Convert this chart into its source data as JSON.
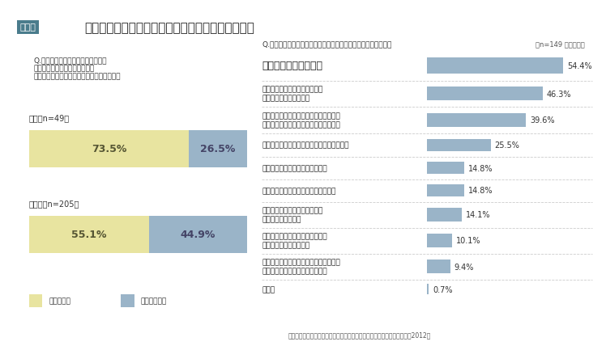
{
  "title": "経営人材候補の育成を目的とした異動・配置の実態",
  "title_badge": "図表２",
  "left_question": "Q.経営人材候補の育成を目的とした\n　異動・配置を行っていますか\n　（自社の経営人材育成に対する満足度別）",
  "right_question": "Q.経営人材候補の育成を目的とした異動・配置の課題は何ですか",
  "right_note": "（n=149 複数選択）",
  "satisfaction_groups": [
    {
      "label": "満足（n=49）",
      "bar1_pct": 73.5,
      "bar2_pct": 26.5,
      "bar1_label": "73.5%",
      "bar2_label": "26.5%"
    },
    {
      "label": "不満足（n=205）",
      "bar1_pct": 55.1,
      "bar2_pct": 44.9,
      "bar1_label": "55.1%",
      "bar2_label": "44.9%"
    }
  ],
  "legend": [
    "行っている",
    "行っていない"
  ],
  "color_yes": "#e8e4a0",
  "color_no": "#9ab4c8",
  "bar_categories": [
    "現場が人を手放さない",
    "異動・配置が計画的ではなく、\n場当たり的になっている",
    "相対的に年齢の高い人材のポストオフが\nでき、若手を配置するポストが作れない",
    "異動・配置のために必要なポストが足りない",
    "現場が異動・配置に否定的である",
    "異動・配置での学びを活かす場がない",
    "高いポジションへの抜擢人事に\n否定的な風土がある",
    "異動・配置先でパフォーマンスを\nあげられない人材が多い",
    "失敗させることを恐れ、実力以上の力が\n求められる職務への配置をしない",
    "その他"
  ],
  "bar_values": [
    54.4,
    46.3,
    39.6,
    25.5,
    14.8,
    14.8,
    14.1,
    10.1,
    9.4,
    0.7
  ],
  "bar_labels": [
    "54.4%",
    "46.3%",
    "39.6%",
    "25.5%",
    "14.8%",
    "14.8%",
    "14.1%",
    "10.1%",
    "9.4%",
    "0.7%"
  ],
  "bar_color": "#9ab4c8",
  "source": "出所：リクルートマネジメントソリューションズ「経営人材育成実態調査2012」",
  "bg_color": "#ffffff",
  "badge_bg": "#4a7c8c",
  "badge_text_color": "#ffffff"
}
